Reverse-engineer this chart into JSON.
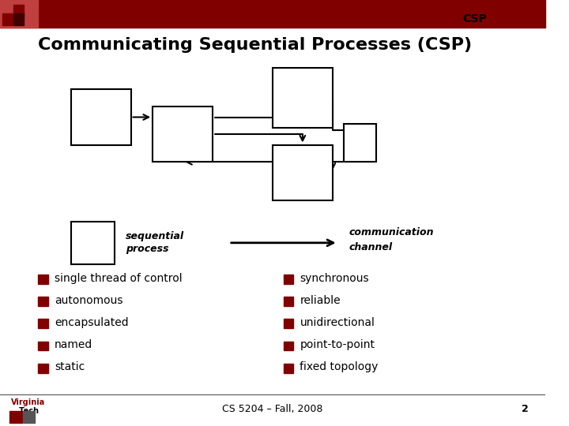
{
  "title": "Communicating Sequential Processes (CSP)",
  "header_label": "CSP",
  "bg_color": "#ffffff",
  "header_bar_color": "#800000",
  "left_bullets": [
    "single thread of control",
    "autonomous",
    "encapsulated",
    "named",
    "static"
  ],
  "right_bullets": [
    "synchronous",
    "reliable",
    "unidirectional",
    "point-to-point",
    "fixed topology"
  ],
  "bullet_color": "#800000",
  "footer_text": "CS 5204 – Fall, 2008",
  "page_num": "2",
  "title_fontsize": 16,
  "body_fontsize": 10,
  "legend_fontsize": 9,
  "footer_fontsize": 9
}
